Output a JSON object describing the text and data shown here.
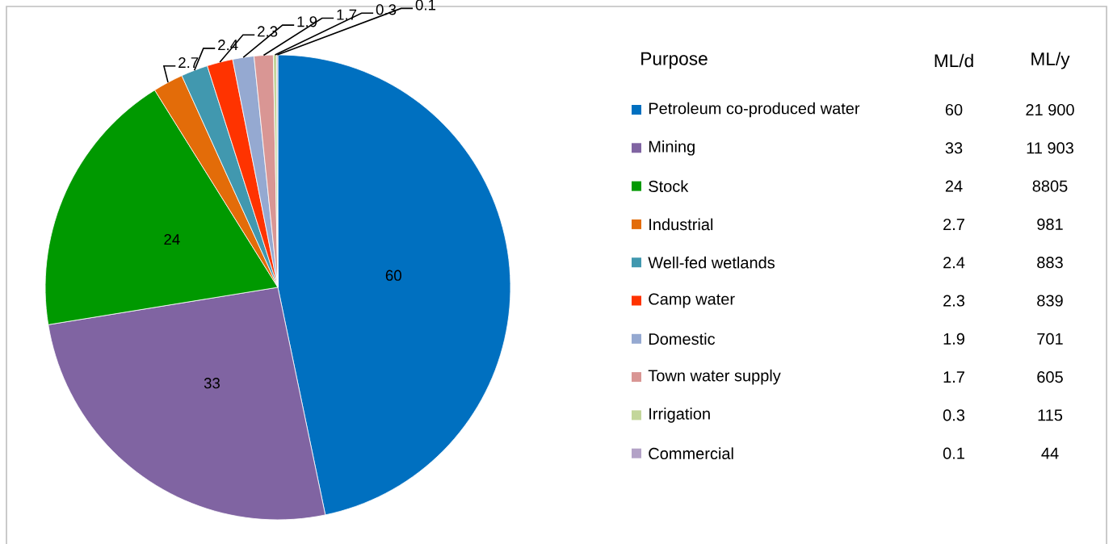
{
  "chart_data": {
    "type": "pie",
    "categories": [
      "Petroleum co-produced  water",
      "Mining",
      "Stock",
      "Industrial",
      "Well-fed wetlands",
      "Camp water",
      "Domestic",
      "Town water supply",
      "Irrigation",
      "Commercial"
    ],
    "values": [
      60,
      33,
      24,
      2.7,
      2.4,
      2.3,
      1.9,
      1.7,
      0.3,
      0.1
    ],
    "colors": [
      "#0070c0",
      "#8064a2",
      "#009900",
      "#e36c09",
      "#4198af",
      "#ff3300",
      "#95a9d1",
      "#d99694",
      "#c3d69b",
      "#b3a2c7"
    ],
    "data_labels": true,
    "legend": "right",
    "legend_title": "Purpose",
    "annotations": [
      "ML/d",
      "ML/y",
      "21 900",
      "11 903",
      "8805",
      "981",
      "883",
      "839",
      "701",
      "605",
      "115",
      "44",
      "60",
      "33",
      "24",
      "2.7",
      "2.4",
      "2.3",
      "1.9",
      "1.7",
      "0.3",
      "0.1"
    ]
  }
}
